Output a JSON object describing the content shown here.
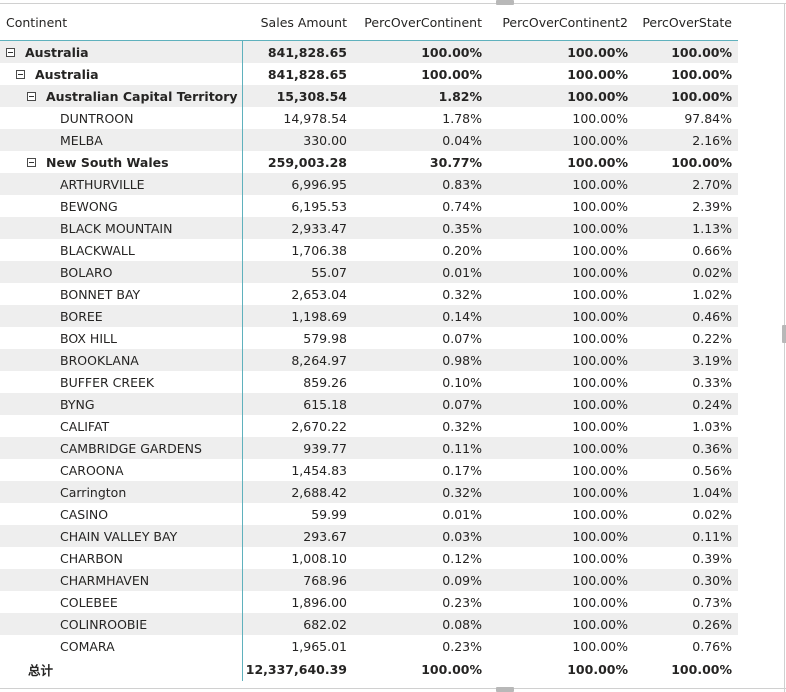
{
  "columns": {
    "c0": "Continent",
    "c1": "Sales Amount",
    "c2": "PercOverContinent",
    "c3": "PercOverContinent2",
    "c4": "PercOverState"
  },
  "rows": [
    {
      "kind": "sub",
      "level": 0,
      "label": "Australia",
      "sales": "841,828.65",
      "pc": "100.00%",
      "pc2": "100.00%",
      "ps": "100.00%"
    },
    {
      "kind": "sub",
      "level": 1,
      "label": "Australia",
      "sales": "841,828.65",
      "pc": "100.00%",
      "pc2": "100.00%",
      "ps": "100.00%"
    },
    {
      "kind": "sub",
      "level": 2,
      "label": "Australian Capital Territory",
      "sales": "15,308.54",
      "pc": "1.82%",
      "pc2": "100.00%",
      "ps": "100.00%"
    },
    {
      "kind": "leaf",
      "level": 3,
      "label": "DUNTROON",
      "sales": "14,978.54",
      "pc": "1.78%",
      "pc2": "100.00%",
      "ps": "97.84%"
    },
    {
      "kind": "leaf",
      "level": 3,
      "label": "MELBA",
      "sales": "330.00",
      "pc": "0.04%",
      "pc2": "100.00%",
      "ps": "2.16%"
    },
    {
      "kind": "sub",
      "level": 2,
      "label": "New South Wales",
      "sales": "259,003.28",
      "pc": "30.77%",
      "pc2": "100.00%",
      "ps": "100.00%"
    },
    {
      "kind": "leaf",
      "level": 3,
      "label": "ARTHURVILLE",
      "sales": "6,996.95",
      "pc": "0.83%",
      "pc2": "100.00%",
      "ps": "2.70%"
    },
    {
      "kind": "leaf",
      "level": 3,
      "label": "BEWONG",
      "sales": "6,195.53",
      "pc": "0.74%",
      "pc2": "100.00%",
      "ps": "2.39%"
    },
    {
      "kind": "leaf",
      "level": 3,
      "label": "BLACK MOUNTAIN",
      "sales": "2,933.47",
      "pc": "0.35%",
      "pc2": "100.00%",
      "ps": "1.13%"
    },
    {
      "kind": "leaf",
      "level": 3,
      "label": "BLACKWALL",
      "sales": "1,706.38",
      "pc": "0.20%",
      "pc2": "100.00%",
      "ps": "0.66%"
    },
    {
      "kind": "leaf",
      "level": 3,
      "label": "BOLARO",
      "sales": "55.07",
      "pc": "0.01%",
      "pc2": "100.00%",
      "ps": "0.02%"
    },
    {
      "kind": "leaf",
      "level": 3,
      "label": "BONNET BAY",
      "sales": "2,653.04",
      "pc": "0.32%",
      "pc2": "100.00%",
      "ps": "1.02%"
    },
    {
      "kind": "leaf",
      "level": 3,
      "label": "BOREE",
      "sales": "1,198.69",
      "pc": "0.14%",
      "pc2": "100.00%",
      "ps": "0.46%"
    },
    {
      "kind": "leaf",
      "level": 3,
      "label": "BOX HILL",
      "sales": "579.98",
      "pc": "0.07%",
      "pc2": "100.00%",
      "ps": "0.22%"
    },
    {
      "kind": "leaf",
      "level": 3,
      "label": "BROOKLANA",
      "sales": "8,264.97",
      "pc": "0.98%",
      "pc2": "100.00%",
      "ps": "3.19%"
    },
    {
      "kind": "leaf",
      "level": 3,
      "label": "BUFFER CREEK",
      "sales": "859.26",
      "pc": "0.10%",
      "pc2": "100.00%",
      "ps": "0.33%"
    },
    {
      "kind": "leaf",
      "level": 3,
      "label": "BYNG",
      "sales": "615.18",
      "pc": "0.07%",
      "pc2": "100.00%",
      "ps": "0.24%"
    },
    {
      "kind": "leaf",
      "level": 3,
      "label": "CALIFAT",
      "sales": "2,670.22",
      "pc": "0.32%",
      "pc2": "100.00%",
      "ps": "1.03%"
    },
    {
      "kind": "leaf",
      "level": 3,
      "label": "CAMBRIDGE GARDENS",
      "sales": "939.77",
      "pc": "0.11%",
      "pc2": "100.00%",
      "ps": "0.36%"
    },
    {
      "kind": "leaf",
      "level": 3,
      "label": "CAROONA",
      "sales": "1,454.83",
      "pc": "0.17%",
      "pc2": "100.00%",
      "ps": "0.56%"
    },
    {
      "kind": "leaf",
      "level": 3,
      "label": "Carrington",
      "sales": "2,688.42",
      "pc": "0.32%",
      "pc2": "100.00%",
      "ps": "1.04%"
    },
    {
      "kind": "leaf",
      "level": 3,
      "label": "CASINO",
      "sales": "59.99",
      "pc": "0.01%",
      "pc2": "100.00%",
      "ps": "0.02%"
    },
    {
      "kind": "leaf",
      "level": 3,
      "label": "CHAIN VALLEY BAY",
      "sales": "293.67",
      "pc": "0.03%",
      "pc2": "100.00%",
      "ps": "0.11%"
    },
    {
      "kind": "leaf",
      "level": 3,
      "label": "CHARBON",
      "sales": "1,008.10",
      "pc": "0.12%",
      "pc2": "100.00%",
      "ps": "0.39%"
    },
    {
      "kind": "leaf",
      "level": 3,
      "label": "CHARMHAVEN",
      "sales": "768.96",
      "pc": "0.09%",
      "pc2": "100.00%",
      "ps": "0.30%"
    },
    {
      "kind": "leaf",
      "level": 3,
      "label": "COLEBEE",
      "sales": "1,896.00",
      "pc": "0.23%",
      "pc2": "100.00%",
      "ps": "0.73%"
    },
    {
      "kind": "leaf",
      "level": 3,
      "label": "COLINROOBIE",
      "sales": "682.02",
      "pc": "0.08%",
      "pc2": "100.00%",
      "ps": "0.26%"
    },
    {
      "kind": "leaf",
      "level": 3,
      "label": "COMARA",
      "sales": "1,965.01",
      "pc": "0.23%",
      "pc2": "100.00%",
      "ps": "0.76%"
    }
  ],
  "total": {
    "label": "总计",
    "sales": "12,337,640.39",
    "pc": "100.00%",
    "pc2": "100.00%",
    "ps": "100.00%"
  },
  "icons": {
    "expander": "collapse-minus-icon",
    "grip": "resize-grip-icon"
  },
  "colors": {
    "header_border": "#5fb1bd",
    "row_band": "#eeeeee",
    "text": "#252423"
  }
}
